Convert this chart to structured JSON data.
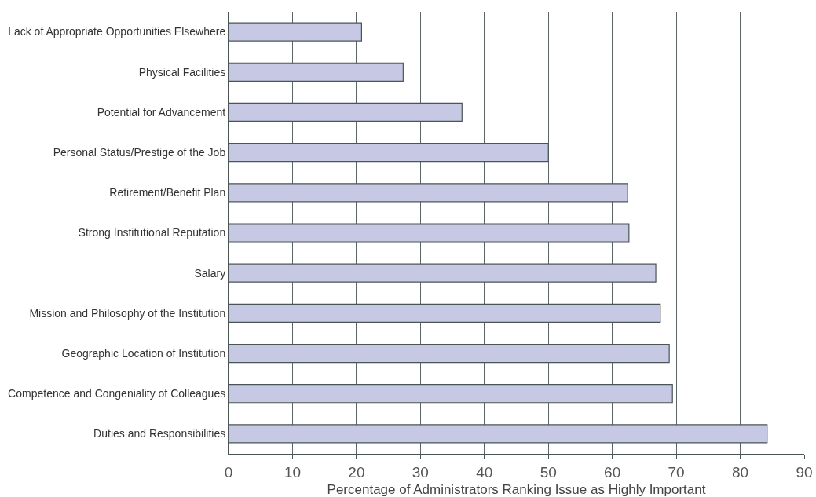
{
  "chart_data": {
    "type": "bar",
    "orientation": "horizontal",
    "xlabel": "Percentage of Administrators Ranking Issue as Highly Important",
    "categories": [
      "Lack of Appropriate Opportunities Elsewhere",
      "Physical Facilities",
      "Potential for Advancement",
      "Personal Status/Prestige of the Job",
      "Retirement/Benefit Plan",
      "Strong Institutional Reputation",
      "Salary",
      "Mission and Philosophy of the Institution",
      "Geographic Location of Institution",
      "Competence and Congeniality of Colleagues",
      "Duties and Responsibilities"
    ],
    "values": [
      20.8,
      27.3,
      36.5,
      50,
      62.4,
      62.6,
      66.8,
      67.5,
      68.9,
      69.4,
      84.2
    ],
    "color": "#c6c8e4",
    "xlim": [
      0,
      90
    ],
    "xticks": [
      0,
      10,
      20,
      30,
      40,
      50,
      60,
      70,
      80,
      90
    ],
    "grid": "x"
  }
}
